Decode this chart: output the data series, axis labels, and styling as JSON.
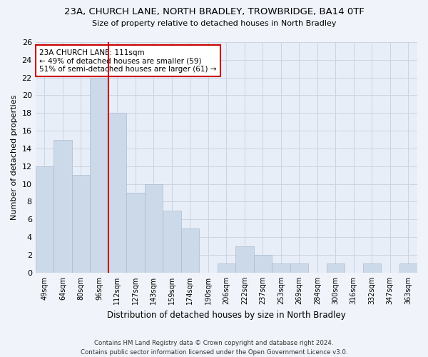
{
  "title1": "23A, CHURCH LANE, NORTH BRADLEY, TROWBRIDGE, BA14 0TF",
  "title2": "Size of property relative to detached houses in North Bradley",
  "xlabel": "Distribution of detached houses by size in North Bradley",
  "ylabel": "Number of detached properties",
  "categories": [
    "49sqm",
    "64sqm",
    "80sqm",
    "96sqm",
    "112sqm",
    "127sqm",
    "143sqm",
    "159sqm",
    "174sqm",
    "190sqm",
    "206sqm",
    "222sqm",
    "237sqm",
    "253sqm",
    "269sqm",
    "284sqm",
    "300sqm",
    "316sqm",
    "332sqm",
    "347sqm",
    "363sqm"
  ],
  "values": [
    12,
    15,
    11,
    22,
    18,
    9,
    10,
    7,
    5,
    0,
    1,
    3,
    2,
    1,
    1,
    0,
    1,
    0,
    1,
    0,
    1
  ],
  "bar_color": "#ccd9e8",
  "bar_edge_color": "#aabbd0",
  "vline_index": 4,
  "vline_color": "#cc0000",
  "annotation_text": "23A CHURCH LANE: 111sqm\n← 49% of detached houses are smaller (59)\n51% of semi-detached houses are larger (61) →",
  "annotation_box_color": "#ffffff",
  "annotation_box_edge": "#cc0000",
  "ylim": [
    0,
    26
  ],
  "yticks": [
    0,
    2,
    4,
    6,
    8,
    10,
    12,
    14,
    16,
    18,
    20,
    22,
    24,
    26
  ],
  "grid_color": "#ccd4e0",
  "footer1": "Contains HM Land Registry data © Crown copyright and database right 2024.",
  "footer2": "Contains public sector information licensed under the Open Government Licence v3.0.",
  "bg_color": "#f0f4fa",
  "plot_bg_color": "#e8eef8"
}
